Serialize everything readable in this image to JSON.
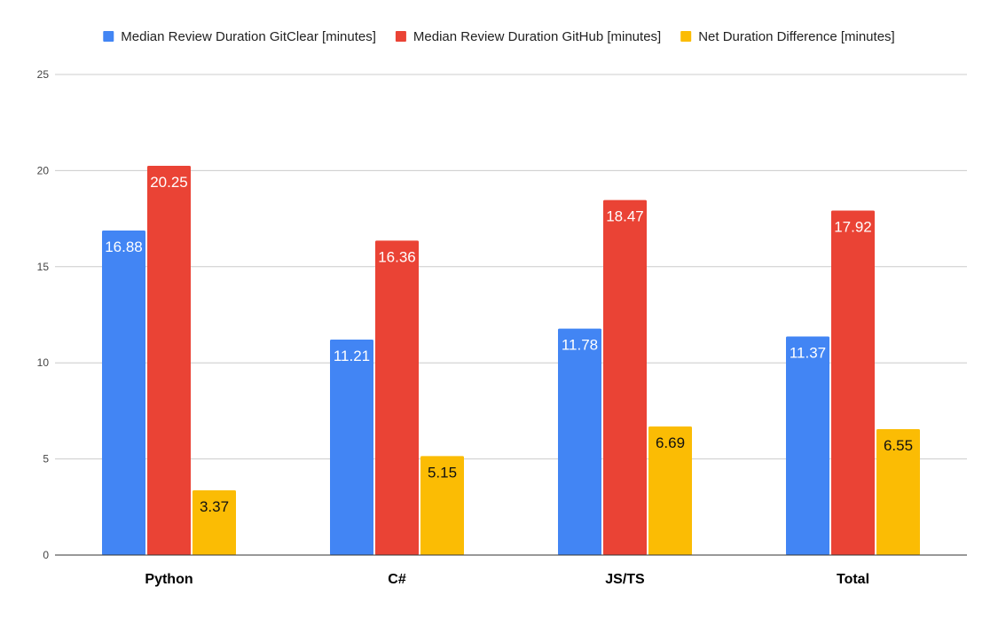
{
  "chart_data": {
    "type": "bar",
    "title": "",
    "xlabel": "",
    "ylabel": "",
    "categories": [
      "Python",
      "C#",
      "JS/TS",
      "Total"
    ],
    "ylim": [
      0,
      25
    ],
    "yticks": [
      0,
      5,
      10,
      15,
      20,
      25
    ],
    "grid": true,
    "legend_position": "top",
    "series": [
      {
        "name": "Median Review Duration GitClear [minutes]",
        "color": "#4285f4",
        "label_color": "#ffffff",
        "values": [
          16.88,
          11.21,
          11.78,
          11.37
        ],
        "labels": [
          "16.88",
          "11.21",
          "11.78",
          "11.37"
        ]
      },
      {
        "name": "Median Review Duration GitHub [minutes]",
        "color": "#ea4335",
        "label_color": "#ffffff",
        "values": [
          20.25,
          16.36,
          18.47,
          17.92
        ],
        "labels": [
          "20.25",
          "16.36",
          "18.47",
          "17.92"
        ]
      },
      {
        "name": "Net Duration Difference [minutes]",
        "color": "#fbbc04",
        "label_color": "#111111",
        "values": [
          3.37,
          5.15,
          6.69,
          6.55
        ],
        "labels": [
          "3.37",
          "5.15",
          "6.69",
          "6.55"
        ]
      }
    ]
  }
}
